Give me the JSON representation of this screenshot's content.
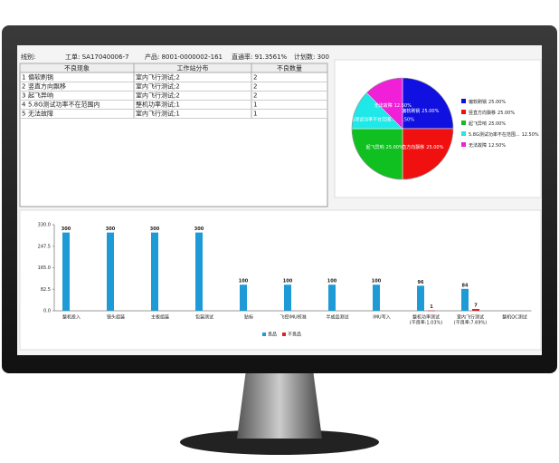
{
  "header": {
    "line": "线别:",
    "order": "工单: SA17040006-7",
    "product": "产品: 8001-0000002-161",
    "yield": "直通率: 91.3561%",
    "plan": "计划数: 300"
  },
  "table": {
    "columns": [
      "不良现象",
      "工作站分布",
      "不良数量"
    ],
    "rows": [
      [
        "1",
        "偏软刷锅",
        "室内飞行测试;2",
        "2"
      ],
      [
        "2",
        "竖直方向飘移",
        "室内飞行测试;2",
        "2"
      ],
      [
        "3",
        "起飞异响",
        "室内飞行测试;2",
        "2"
      ],
      [
        "4",
        "5.8G测试功率不在范围内",
        "整机功率测试;1",
        "1"
      ],
      [
        "5",
        "无法故障",
        "室内飞行测试;1",
        "1"
      ]
    ]
  },
  "chart_data": [
    {
      "type": "pie",
      "legend": "right",
      "categories": [
        "偏软刷锅",
        "竖直方向飘移",
        "起飞异响",
        "5.8G测试功率不在范围...",
        "无法故障"
      ],
      "values": [
        25,
        25,
        25,
        12.5,
        12.5
      ],
      "value_labels": [
        "25.00%",
        "25.00%",
        "25.00%",
        "12.50%",
        "12.50%"
      ],
      "colors": [
        "#1010e0",
        "#f01010",
        "#10c020",
        "#20e8e8",
        "#f020d8"
      ]
    },
    {
      "type": "bar",
      "legend": "bottom",
      "categories": [
        "整机投入",
        "镜头组装",
        "主板组装",
        "包装测试",
        "贴标",
        "飞控IMU校准",
        "半成品测试",
        "IMU写入",
        "整机功率测试",
        "室内飞行测试",
        "整机QC测试"
      ],
      "category_notes": [
        null,
        null,
        null,
        null,
        null,
        null,
        null,
        null,
        "(不良率:1.03%)",
        "(不良率:7.69%)",
        null
      ],
      "note_color": "#e02020",
      "series": [
        {
          "name": "良品",
          "color": "#1e9ad6",
          "values": [
            300,
            300,
            300,
            300,
            100,
            100,
            100,
            100,
            96,
            84,
            null
          ]
        },
        {
          "name": "不良品",
          "color": "#e02020",
          "values": [
            null,
            null,
            null,
            null,
            null,
            null,
            null,
            null,
            1,
            7,
            null
          ]
        }
      ],
      "ylim": [
        0,
        330
      ],
      "yticks": [
        {
          "value": 0,
          "label": "0.0"
        },
        82.5,
        {
          "value": 165,
          "label": "165.0"
        },
        247.5,
        {
          "value": 330,
          "label": "330.0"
        }
      ]
    }
  ]
}
